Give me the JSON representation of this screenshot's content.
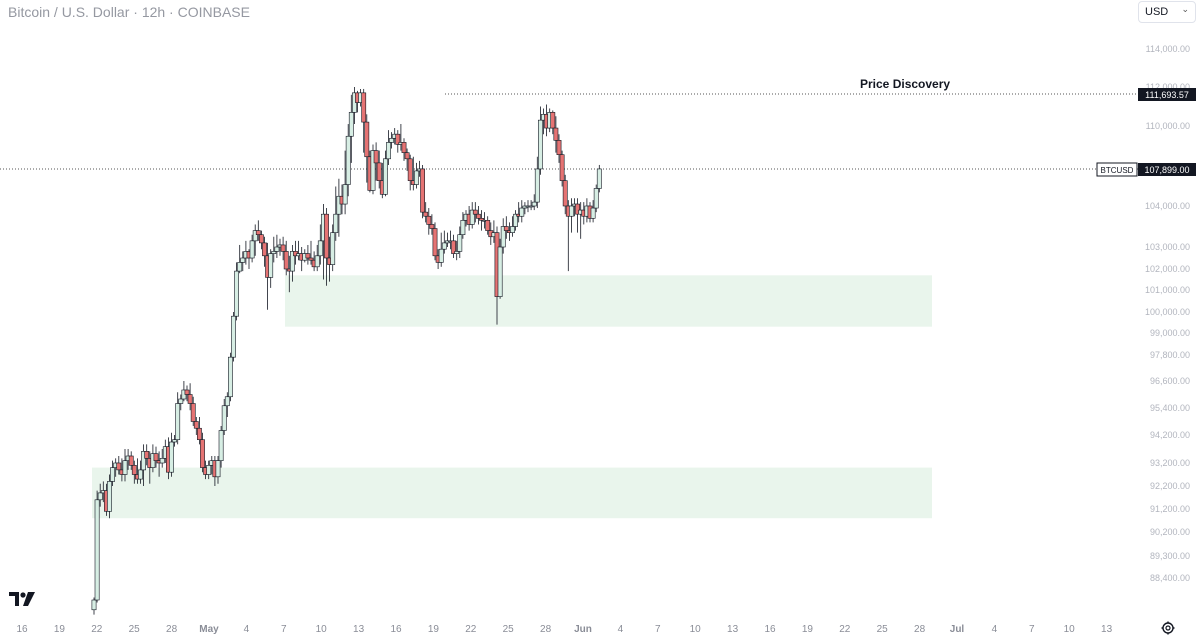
{
  "header": {
    "title": "Bitcoin / U.S. Dollar · 12h · COINBASE",
    "currency": "USD"
  },
  "icons": {
    "logo": "tradingview-logo-icon",
    "settings": "gear-icon",
    "currency_dropdown": "chevron-down-icon"
  },
  "colors": {
    "up": "#26a69a",
    "up_fill": "#d7eee4",
    "down": "#e57373",
    "zone": "#e9f5ec",
    "last_price_bg": "#131722"
  },
  "chart_data": {
    "type": "candlestick",
    "timeframe": "12h",
    "y_axis": {
      "labels": [
        "114,000.00",
        "112,000.00",
        "110,000.00",
        "106,000.00",
        "104,000.00",
        "103,000.00",
        "102,000.00",
        "101,000.00",
        "100,000.00",
        "99,000.00",
        "97,800.00",
        "96,600.00",
        "95,400.00",
        "94,200.00",
        "93,200.00",
        "92,200.00",
        "91,200.00",
        "90,200.00",
        "89,300.00",
        "88,400.00"
      ]
    },
    "x_axis": {
      "labels": [
        "16",
        "19",
        "22",
        "25",
        "28",
        "May",
        "4",
        "7",
        "10",
        "13",
        "16",
        "19",
        "22",
        "25",
        "28",
        "Jun",
        "4",
        "7",
        "10",
        "13",
        "16",
        "19",
        "22",
        "25",
        "28",
        "Jul",
        "4",
        "7",
        "10",
        "13"
      ]
    },
    "annotations": {
      "price_discovery_label": "Price Discovery",
      "resistance_price": "111,693.57",
      "symbol": "BTCUSD",
      "last_price": "107,899.00"
    },
    "zones": [
      {
        "name": "upper-support-zone",
        "from": 100300,
        "to": 102700
      },
      {
        "name": "lower-support-zone",
        "from": 91800,
        "to": 94000
      }
    ],
    "candles": [
      [
        88000,
        88400,
        87800,
        88500
      ],
      [
        88400,
        92600,
        88300,
        93000
      ],
      [
        92600,
        92900,
        92300,
        93300
      ],
      [
        92900,
        93000,
        92500,
        93400
      ],
      [
        93000,
        92100,
        91900,
        93300
      ],
      [
        92100,
        93400,
        91800,
        93700
      ],
      [
        93400,
        94000,
        93200,
        94300
      ],
      [
        94000,
        94200,
        93600,
        94400
      ],
      [
        94200,
        93900,
        93700,
        94500
      ],
      [
        93900,
        93700,
        93400,
        94400
      ],
      [
        93700,
        94300,
        93400,
        94800
      ],
      [
        94300,
        94500,
        93900,
        94800
      ],
      [
        94500,
        94100,
        93900,
        94700
      ],
      [
        94100,
        93700,
        93300,
        94300
      ],
      [
        93700,
        93500,
        93300,
        94400
      ],
      [
        93500,
        93900,
        93300,
        94300
      ],
      [
        93900,
        94700,
        93200,
        95000
      ],
      [
        94700,
        94400,
        94100,
        95000
      ],
      [
        94400,
        94000,
        93300,
        94700
      ],
      [
        94000,
        94600,
        93800,
        95000
      ],
      [
        94600,
        94300,
        94000,
        94900
      ],
      [
        94300,
        94200,
        93600,
        94700
      ],
      [
        94200,
        94400,
        94000,
        94800
      ],
      [
        94400,
        94900,
        94200,
        95200
      ],
      [
        94900,
        93800,
        93500,
        95300
      ],
      [
        93800,
        95100,
        93600,
        95500
      ],
      [
        95100,
        95200,
        94900,
        95400
      ],
      [
        95200,
        96800,
        95000,
        97300
      ],
      [
        96800,
        97000,
        96500,
        97200
      ],
      [
        97000,
        97400,
        96900,
        97800
      ],
      [
        97400,
        97200,
        96900,
        97600
      ],
      [
        97200,
        96800,
        96500,
        97700
      ],
      [
        96800,
        96000,
        95800,
        97100
      ],
      [
        96000,
        95700,
        95400,
        96200
      ],
      [
        95700,
        95200,
        95000,
        96200
      ],
      [
        95200,
        94000,
        93800,
        95500
      ],
      [
        94000,
        93700,
        93500,
        94300
      ],
      [
        93700,
        94100,
        93500,
        94300
      ],
      [
        94100,
        94300,
        93700,
        94500
      ],
      [
        94300,
        93600,
        93200,
        94500
      ],
      [
        93600,
        94300,
        93300,
        94500
      ],
      [
        94300,
        95600,
        94000,
        95800
      ],
      [
        95600,
        96700,
        95400,
        97000
      ],
      [
        96700,
        97100,
        96200,
        97300
      ],
      [
        97100,
        98900,
        96900,
        99100
      ],
      [
        98900,
        100800,
        98700,
        101000
      ],
      [
        100800,
        102900,
        100600,
        103300
      ],
      [
        102900,
        103300,
        102800,
        104100
      ],
      [
        103300,
        103500,
        102900,
        103800
      ],
      [
        103500,
        103800,
        103200,
        104300
      ],
      [
        103800,
        103500,
        103000,
        103900
      ],
      [
        103500,
        104300,
        103300,
        104600
      ],
      [
        104300,
        104800,
        103600,
        105100
      ],
      [
        104800,
        104600,
        104300,
        105300
      ],
      [
        104600,
        104200,
        103900,
        104800
      ],
      [
        104200,
        103600,
        103100,
        104500
      ],
      [
        103600,
        102600,
        101100,
        104200
      ],
      [
        102600,
        103700,
        102100,
        103900
      ],
      [
        103700,
        103800,
        103300,
        104500
      ],
      [
        103800,
        104000,
        103500,
        104600
      ],
      [
        104000,
        104100,
        103600,
        104400
      ],
      [
        104100,
        103800,
        103400,
        104500
      ],
      [
        103800,
        103000,
        102700,
        104300
      ],
      [
        103000,
        102900,
        101900,
        103600
      ],
      [
        102900,
        103800,
        102400,
        104100
      ],
      [
        103800,
        103600,
        103200,
        104300
      ],
      [
        103600,
        103700,
        103400,
        104300
      ],
      [
        103700,
        103400,
        102900,
        104000
      ],
      [
        103400,
        103700,
        103300,
        103900
      ],
      [
        103700,
        103500,
        103200,
        104100
      ],
      [
        103500,
        103400,
        103200,
        104300
      ],
      [
        103400,
        103100,
        102900,
        103800
      ],
      [
        103100,
        103600,
        102900,
        104100
      ],
      [
        103600,
        104300,
        103200,
        105100
      ],
      [
        104300,
        105600,
        102500,
        106100
      ],
      [
        105600,
        103500,
        102200,
        105900
      ],
      [
        103500,
        103200,
        102400,
        104500
      ],
      [
        103200,
        104700,
        102900,
        105100
      ],
      [
        104700,
        105600,
        104300,
        107000
      ],
      [
        105600,
        106500,
        104500,
        107400
      ],
      [
        106500,
        106100,
        105600,
        107100
      ],
      [
        106100,
        107100,
        105600,
        108800
      ],
      [
        107100,
        109500,
        106500,
        110100
      ],
      [
        109500,
        110700,
        108200,
        111600
      ],
      [
        110700,
        111700,
        110100,
        112000
      ],
      [
        111700,
        111200,
        110700,
        111800
      ],
      [
        111200,
        111700,
        111000,
        111900
      ],
      [
        111700,
        110200,
        108700,
        111900
      ],
      [
        110200,
        108500,
        107200,
        110600
      ],
      [
        108500,
        106800,
        106700,
        108800
      ],
      [
        106800,
        108800,
        106600,
        109100
      ],
      [
        108800,
        108200,
        107300,
        109200
      ],
      [
        108200,
        107300,
        106900,
        108800
      ],
      [
        107300,
        106600,
        106400,
        108200
      ],
      [
        106600,
        108400,
        106500,
        108800
      ],
      [
        108400,
        109200,
        108100,
        109800
      ],
      [
        109200,
        109400,
        108900,
        109700
      ],
      [
        109400,
        109600,
        109100,
        109900
      ],
      [
        109600,
        109100,
        108700,
        109800
      ],
      [
        109100,
        109200,
        108800,
        110100
      ],
      [
        109200,
        108700,
        108300,
        109400
      ],
      [
        108700,
        108400,
        107800,
        108900
      ],
      [
        108400,
        107300,
        106800,
        108600
      ],
      [
        107300,
        107100,
        106800,
        108500
      ],
      [
        107100,
        107800,
        106900,
        108200
      ],
      [
        107800,
        107900,
        107500,
        108300
      ],
      [
        107900,
        105700,
        105400,
        108100
      ],
      [
        105700,
        105500,
        105200,
        106200
      ],
      [
        105500,
        105100,
        104600,
        105900
      ],
      [
        105100,
        104900,
        104600,
        105600
      ],
      [
        104900,
        103600,
        103400,
        105200
      ],
      [
        103600,
        103300,
        103000,
        103900
      ],
      [
        103300,
        103900,
        103100,
        104700
      ],
      [
        103900,
        104200,
        103700,
        104800
      ],
      [
        104200,
        104300,
        104000,
        104700
      ],
      [
        104300,
        104300,
        103900,
        104800
      ],
      [
        104300,
        103700,
        103500,
        104600
      ],
      [
        103700,
        103800,
        103400,
        104300
      ],
      [
        103800,
        104600,
        103500,
        105000
      ],
      [
        104600,
        105300,
        104400,
        105700
      ],
      [
        105300,
        105600,
        105000,
        105800
      ],
      [
        105600,
        105100,
        104800,
        106000
      ],
      [
        105100,
        105800,
        104900,
        106200
      ],
      [
        105800,
        105600,
        105200,
        106200
      ],
      [
        105600,
        105400,
        105100,
        106000
      ],
      [
        105400,
        105300,
        104800,
        105800
      ],
      [
        105300,
        105300,
        104900,
        105700
      ],
      [
        105300,
        104800,
        104600,
        105500
      ],
      [
        104800,
        104500,
        104100,
        105200
      ],
      [
        104500,
        104700,
        104200,
        105300
      ],
      [
        104700,
        101700,
        100400,
        105000
      ],
      [
        101700,
        104000,
        101600,
        104400
      ],
      [
        104000,
        105000,
        103700,
        105400
      ],
      [
        105000,
        104800,
        104400,
        105500
      ],
      [
        104800,
        104700,
        104300,
        105200
      ],
      [
        104700,
        105000,
        104500,
        105500
      ],
      [
        105000,
        105600,
        104800,
        105800
      ],
      [
        105600,
        105500,
        105200,
        106200
      ],
      [
        105500,
        105900,
        105200,
        106300
      ],
      [
        105900,
        106000,
        105600,
        106200
      ],
      [
        106000,
        106000,
        105700,
        106300
      ],
      [
        106000,
        106000,
        105800,
        106300
      ],
      [
        106000,
        106200,
        105800,
        106600
      ],
      [
        106200,
        107900,
        105900,
        108500
      ],
      [
        107900,
        110300,
        107600,
        111000
      ],
      [
        110300,
        110600,
        109600,
        110900
      ],
      [
        110600,
        109900,
        109500,
        111100
      ],
      [
        109900,
        110700,
        109700,
        110900
      ],
      [
        110700,
        109900,
        109600,
        110800
      ],
      [
        109900,
        109300,
        108700,
        110500
      ],
      [
        109300,
        108600,
        108200,
        109600
      ],
      [
        108600,
        107300,
        107000,
        108800
      ],
      [
        107300,
        106000,
        105600,
        107600
      ],
      [
        106000,
        105500,
        102900,
        106300
      ],
      [
        105500,
        106000,
        104700,
        106400
      ],
      [
        106000,
        106100,
        105500,
        106400
      ],
      [
        106100,
        105600,
        104700,
        106400
      ],
      [
        105600,
        105800,
        104400,
        106200
      ],
      [
        105800,
        105500,
        105100,
        106200
      ],
      [
        105500,
        106000,
        105200,
        106400
      ],
      [
        106000,
        105400,
        105200,
        106200
      ],
      [
        105400,
        105900,
        105200,
        106300
      ],
      [
        105900,
        106900,
        105700,
        107100
      ],
      [
        106900,
        107900,
        106700,
        108100
      ]
    ]
  }
}
